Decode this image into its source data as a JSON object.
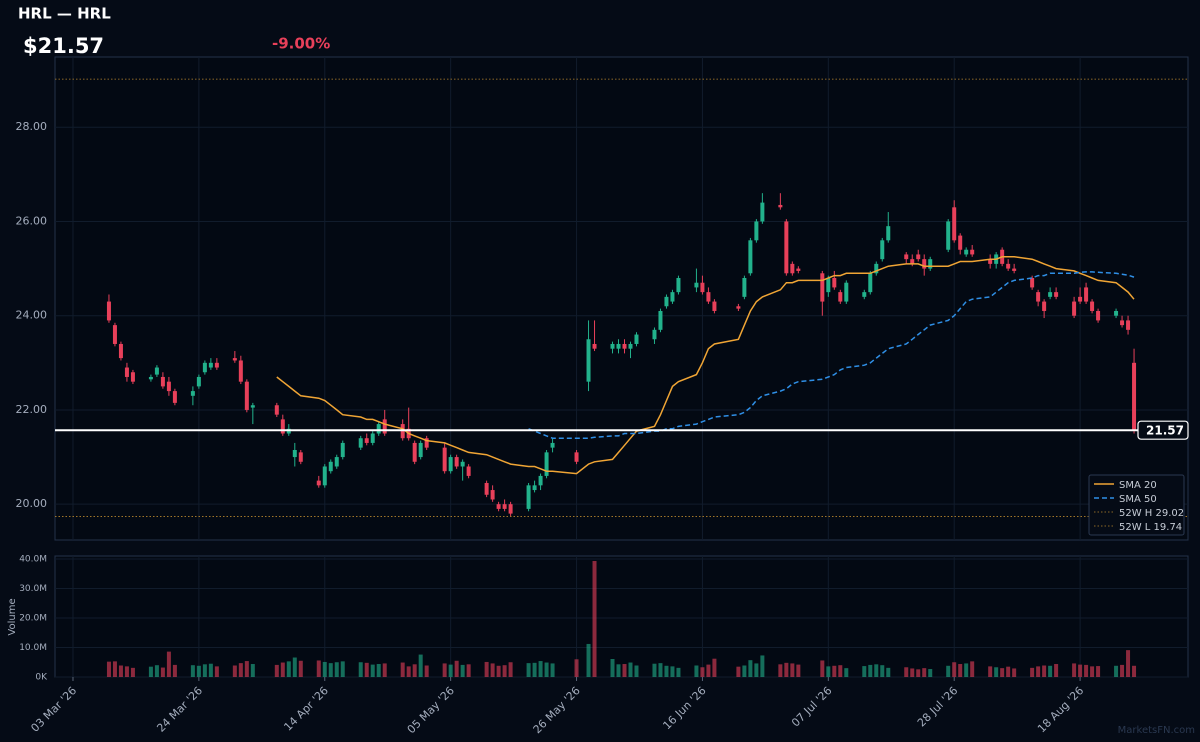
{
  "chart_data": {
    "type": "candlestick",
    "title": "HRL — HRL",
    "last": 21.57,
    "last_label": "$21.57",
    "change": -9,
    "change_label": "-9.00%",
    "watermark": "MarketsFN.com",
    "up_color": "#22b28c",
    "down_color": "#e8405a",
    "grid": true,
    "legend": "lower right",
    "xlim": [
      "2026-02-28",
      "2026-09-05"
    ],
    "xticks": [
      {
        "value": "2026-03-03",
        "label": "03 Mar '26"
      },
      {
        "value": "2026-03-24",
        "label": "24 Mar '26"
      },
      {
        "value": "2026-04-14",
        "label": "14 Apr '26"
      },
      {
        "value": "2026-05-05",
        "label": "05 May '26"
      },
      {
        "value": "2026-05-26",
        "label": "26 May '26"
      },
      {
        "value": "2026-06-16",
        "label": "16 Jun '26"
      },
      {
        "value": "2026-07-07",
        "label": "07 Jul '26"
      },
      {
        "value": "2026-07-28",
        "label": "28 Jul '26"
      },
      {
        "value": "2026-08-18",
        "label": "18 Aug '26"
      }
    ],
    "ylim": [
      19.24,
      29.49
    ],
    "yticks": [
      {
        "value": 20,
        "label": "20.00"
      },
      {
        "value": 22,
        "label": "22.00"
      },
      {
        "value": 24,
        "label": "24.00"
      },
      {
        "value": 26,
        "label": "26.00"
      },
      {
        "value": 28,
        "label": "28.00"
      }
    ],
    "x": [
      "2026-03-09",
      "2026-03-10",
      "2026-03-11",
      "2026-03-12",
      "2026-03-13",
      "2026-03-16",
      "2026-03-17",
      "2026-03-18",
      "2026-03-19",
      "2026-03-20",
      "2026-03-23",
      "2026-03-24",
      "2026-03-25",
      "2026-03-26",
      "2026-03-27",
      "2026-03-30",
      "2026-03-31",
      "2026-04-01",
      "2026-04-02",
      "2026-04-06",
      "2026-04-07",
      "2026-04-08",
      "2026-04-09",
      "2026-04-10",
      "2026-04-13",
      "2026-04-14",
      "2026-04-15",
      "2026-04-16",
      "2026-04-17",
      "2026-04-20",
      "2026-04-21",
      "2026-04-22",
      "2026-04-23",
      "2026-04-24",
      "2026-04-27",
      "2026-04-28",
      "2026-04-29",
      "2026-04-30",
      "2026-05-01",
      "2026-05-04",
      "2026-05-05",
      "2026-05-06",
      "2026-05-07",
      "2026-05-08",
      "2026-05-11",
      "2026-05-12",
      "2026-05-13",
      "2026-05-14",
      "2026-05-15",
      "2026-05-18",
      "2026-05-19",
      "2026-05-20",
      "2026-05-21",
      "2026-05-22",
      "2026-05-26",
      "2026-05-28",
      "2026-05-29",
      "2026-06-01",
      "2026-06-02",
      "2026-06-03",
      "2026-06-04",
      "2026-06-05",
      "2026-06-08",
      "2026-06-09",
      "2026-06-10",
      "2026-06-11",
      "2026-06-12",
      "2026-06-15",
      "2026-06-16",
      "2026-06-17",
      "2026-06-18",
      "2026-06-22",
      "2026-06-23",
      "2026-06-24",
      "2026-06-25",
      "2026-06-26",
      "2026-06-29",
      "2026-06-30",
      "2026-07-01",
      "2026-07-02",
      "2026-07-06",
      "2026-07-07",
      "2026-07-08",
      "2026-07-09",
      "2026-07-10",
      "2026-07-13",
      "2026-07-14",
      "2026-07-15",
      "2026-07-16",
      "2026-07-17",
      "2026-07-20",
      "2026-07-21",
      "2026-07-22",
      "2026-07-23",
      "2026-07-24",
      "2026-07-27",
      "2026-07-28",
      "2026-07-29",
      "2026-07-30",
      "2026-07-31",
      "2026-08-03",
      "2026-08-04",
      "2026-08-05",
      "2026-08-06",
      "2026-08-07",
      "2026-08-10",
      "2026-08-11",
      "2026-08-12",
      "2026-08-13",
      "2026-08-14",
      "2026-08-17",
      "2026-08-18",
      "2026-08-19",
      "2026-08-20",
      "2026-08-21",
      "2026-08-24",
      "2026-08-25",
      "2026-08-26",
      "2026-08-27"
    ],
    "open": [
      24.3,
      23.8,
      23.4,
      22.9,
      22.8,
      22.65,
      22.75,
      22.7,
      22.6,
      22.4,
      22.3,
      22.5,
      22.8,
      22.9,
      23.0,
      23.1,
      23.05,
      22.6,
      22.05,
      22.1,
      21.8,
      21.5,
      21.0,
      21.1,
      20.5,
      20.4,
      20.7,
      20.8,
      21.0,
      21.2,
      21.4,
      21.3,
      21.5,
      21.8,
      21.7,
      21.6,
      21.3,
      21.0,
      21.4,
      21.2,
      20.7,
      21.0,
      20.8,
      20.8,
      20.45,
      20.3,
      20.0,
      20.0,
      20.0,
      19.9,
      20.3,
      20.4,
      20.6,
      21.2,
      21.1,
      22.6,
      23.4,
      23.3,
      23.3,
      23.4,
      23.3,
      23.4,
      23.5,
      23.7,
      24.2,
      24.3,
      24.5,
      24.6,
      24.7,
      24.5,
      24.3,
      24.2,
      24.4,
      24.9,
      25.6,
      26.0,
      26.35,
      26.0,
      25.1,
      25.0,
      24.9,
      24.5,
      24.8,
      24.5,
      24.3,
      24.4,
      24.5,
      24.9,
      25.2,
      25.6,
      25.3,
      25.2,
      25.3,
      25.2,
      25.0,
      25.4,
      26.3,
      25.7,
      25.3,
      25.4,
      25.2,
      25.1,
      25.4,
      25.1,
      25.0,
      24.8,
      24.5,
      24.3,
      24.4,
      24.5,
      24.3,
      24.4,
      24.6,
      24.3,
      24.1,
      24.0,
      23.9,
      23.9,
      23.0
    ],
    "high": [
      24.45,
      23.85,
      23.45,
      23.0,
      22.85,
      22.75,
      22.95,
      22.8,
      22.7,
      22.45,
      22.5,
      22.75,
      23.05,
      23.1,
      23.1,
      23.25,
      23.15,
      22.65,
      22.15,
      22.15,
      21.9,
      21.7,
      21.3,
      21.15,
      20.6,
      20.85,
      20.95,
      21.05,
      21.35,
      21.45,
      21.5,
      21.55,
      21.75,
      22.0,
      21.8,
      22.05,
      21.35,
      21.35,
      21.45,
      21.3,
      21.05,
      21.05,
      20.95,
      20.85,
      20.5,
      20.4,
      20.05,
      20.1,
      20.05,
      20.45,
      20.5,
      20.65,
      21.15,
      21.4,
      21.15,
      23.9,
      23.9,
      23.45,
      23.5,
      23.5,
      23.45,
      23.65,
      23.75,
      24.15,
      24.45,
      24.55,
      24.85,
      25.0,
      24.85,
      24.6,
      24.35,
      24.25,
      24.85,
      25.65,
      26.05,
      26.6,
      26.6,
      26.05,
      25.15,
      25.05,
      24.95,
      24.85,
      24.95,
      24.55,
      24.75,
      24.55,
      24.95,
      25.15,
      25.65,
      26.2,
      25.35,
      25.3,
      25.4,
      25.3,
      25.25,
      26.05,
      26.45,
      25.75,
      25.45,
      25.5,
      25.3,
      25.35,
      25.45,
      25.2,
      25.1,
      24.85,
      24.55,
      24.35,
      24.6,
      24.6,
      24.4,
      24.6,
      24.7,
      24.35,
      24.15,
      24.15,
      24.0,
      24.0,
      23.3
    ],
    "low": [
      23.85,
      23.35,
      23.05,
      22.6,
      22.55,
      22.6,
      22.7,
      22.45,
      22.3,
      22.1,
      22.1,
      22.45,
      22.75,
      22.85,
      22.85,
      23.0,
      22.55,
      21.95,
      21.7,
      21.85,
      21.45,
      21.45,
      20.8,
      20.85,
      20.35,
      20.35,
      20.65,
      20.75,
      20.95,
      21.15,
      21.25,
      21.25,
      21.45,
      21.45,
      21.35,
      21.35,
      20.85,
      20.95,
      21.15,
      20.65,
      20.65,
      20.75,
      20.5,
      20.55,
      20.15,
      20.05,
      19.85,
      19.85,
      19.75,
      19.85,
      20.25,
      20.3,
      20.55,
      21.1,
      20.85,
      22.4,
      23.25,
      23.2,
      23.2,
      23.2,
      23.1,
      23.35,
      23.4,
      23.65,
      24.15,
      24.25,
      24.45,
      24.5,
      24.45,
      24.25,
      24.05,
      24.1,
      24.35,
      24.85,
      25.55,
      25.95,
      26.25,
      24.85,
      24.85,
      24.9,
      24.0,
      24.4,
      24.55,
      24.25,
      24.25,
      24.35,
      24.45,
      24.85,
      25.15,
      25.55,
      25.1,
      25.05,
      25.15,
      24.85,
      24.95,
      25.35,
      25.55,
      25.3,
      25.25,
      25.25,
      25.0,
      25.0,
      25.05,
      24.95,
      24.9,
      24.55,
      24.2,
      23.95,
      24.35,
      24.35,
      23.95,
      24.25,
      24.25,
      24.05,
      23.85,
      23.95,
      23.75,
      23.6,
      21.5
    ],
    "close": [
      23.9,
      23.4,
      23.1,
      22.7,
      22.6,
      22.7,
      22.9,
      22.5,
      22.4,
      22.15,
      22.4,
      22.7,
      23.0,
      23.0,
      22.9,
      23.05,
      22.6,
      22.0,
      22.1,
      21.9,
      21.5,
      21.6,
      21.15,
      20.9,
      20.4,
      20.8,
      20.9,
      21.0,
      21.3,
      21.4,
      21.3,
      21.5,
      21.7,
      21.5,
      21.4,
      21.4,
      20.9,
      21.3,
      21.2,
      20.7,
      21.0,
      20.8,
      20.9,
      20.6,
      20.2,
      20.1,
      19.9,
      19.9,
      19.8,
      20.4,
      20.4,
      20.6,
      21.1,
      21.3,
      20.9,
      23.5,
      23.3,
      23.4,
      23.4,
      23.3,
      23.4,
      23.6,
      23.7,
      24.1,
      24.4,
      24.5,
      24.8,
      24.7,
      24.5,
      24.3,
      24.1,
      24.15,
      24.8,
      25.6,
      26.0,
      26.4,
      26.3,
      24.9,
      24.9,
      24.95,
      24.3,
      24.8,
      24.6,
      24.3,
      24.7,
      24.5,
      24.9,
      25.1,
      25.6,
      25.9,
      25.2,
      25.1,
      25.2,
      25.0,
      25.2,
      26.0,
      25.6,
      25.4,
      25.4,
      25.3,
      25.1,
      25.3,
      25.1,
      25.0,
      24.95,
      24.6,
      24.3,
      24.1,
      24.5,
      24.4,
      24.0,
      24.3,
      24.3,
      24.1,
      23.9,
      24.1,
      23.8,
      23.7,
      21.57
    ],
    "overlays": [
      {
        "name": "SMA 20",
        "color": "#f0a535",
        "dashed": false,
        "values": [
          null,
          null,
          null,
          null,
          null,
          null,
          null,
          null,
          null,
          null,
          null,
          null,
          null,
          null,
          null,
          null,
          null,
          null,
          null,
          22.7,
          22.6,
          22.5,
          22.4,
          22.3,
          22.25,
          22.2,
          22.1,
          22.0,
          21.9,
          21.85,
          21.8,
          21.8,
          21.75,
          21.7,
          21.6,
          21.5,
          21.45,
          21.4,
          21.35,
          21.3,
          21.25,
          21.2,
          21.15,
          21.1,
          21.05,
          21.0,
          20.95,
          20.9,
          20.85,
          20.8,
          20.8,
          20.75,
          20.7,
          20.7,
          20.65,
          20.85,
          20.9,
          20.95,
          21.1,
          21.25,
          21.4,
          21.55,
          21.65,
          21.9,
          22.2,
          22.5,
          22.6,
          22.75,
          23.0,
          23.3,
          23.4,
          23.5,
          23.8,
          24.1,
          24.3,
          24.4,
          24.55,
          24.7,
          24.7,
          24.75,
          24.75,
          24.8,
          24.85,
          24.85,
          24.9,
          24.9,
          24.9,
          24.95,
          25.0,
          25.05,
          25.1,
          25.1,
          25.1,
          25.05,
          25.05,
          25.05,
          25.1,
          25.15,
          25.15,
          25.15,
          25.2,
          25.2,
          25.25,
          25.25,
          25.25,
          25.2,
          25.15,
          25.1,
          25.05,
          25.0,
          24.95,
          24.9,
          24.85,
          24.8,
          24.75,
          24.7,
          24.6,
          24.5,
          24.35
        ]
      },
      {
        "name": "SMA 50",
        "color": "#2f8fe6",
        "dashed": true,
        "values": [
          null,
          null,
          null,
          null,
          null,
          null,
          null,
          null,
          null,
          null,
          null,
          null,
          null,
          null,
          null,
          null,
          null,
          null,
          null,
          null,
          null,
          null,
          null,
          null,
          null,
          null,
          null,
          null,
          null,
          null,
          null,
          null,
          null,
          null,
          null,
          null,
          null,
          null,
          null,
          null,
          null,
          null,
          null,
          null,
          null,
          null,
          null,
          null,
          null,
          21.6,
          21.55,
          21.5,
          21.45,
          21.4,
          21.4,
          21.4,
          21.42,
          21.45,
          21.45,
          21.5,
          21.5,
          21.5,
          21.55,
          21.55,
          21.6,
          21.6,
          21.65,
          21.7,
          21.75,
          21.8,
          21.85,
          21.9,
          21.95,
          22.05,
          22.2,
          22.3,
          22.4,
          22.45,
          22.55,
          22.6,
          22.65,
          22.7,
          22.75,
          22.85,
          22.9,
          22.95,
          23.0,
          23.1,
          23.2,
          23.3,
          23.4,
          23.5,
          23.6,
          23.7,
          23.8,
          23.9,
          24.0,
          24.15,
          24.3,
          24.35,
          24.4,
          24.5,
          24.6,
          24.7,
          24.75,
          24.8,
          24.85,
          24.85,
          24.9,
          24.9,
          24.9,
          24.92,
          24.93,
          24.93,
          24.92,
          24.9,
          24.88,
          24.86,
          24.82
        ]
      }
    ],
    "levels": [
      {
        "name": "52W H 29.02",
        "value": 29.02,
        "color": "#b8862e"
      },
      {
        "name": "52W L 19.74",
        "value": 19.74,
        "color": "#b8862e"
      }
    ],
    "volume_panel": {
      "ylabel": "Volume",
      "ylim": [
        0,
        41
      ],
      "yticks": [
        {
          "value": 0,
          "label": "0K"
        },
        {
          "value": 10,
          "label": "10.0M"
        },
        {
          "value": 20,
          "label": "20.0M"
        },
        {
          "value": 30,
          "label": "30.0M"
        },
        {
          "value": 40,
          "label": "40.0M"
        }
      ],
      "values": [
        5.2,
        5.3,
        3.9,
        3.6,
        3.1,
        3.5,
        4.0,
        3.2,
        8.6,
        4.1,
        4.0,
        3.8,
        4.3,
        4.5,
        3.6,
        3.9,
        4.7,
        5.4,
        4.4,
        4.1,
        4.9,
        5.3,
        6.6,
        5.5,
        5.6,
        5.1,
        4.7,
        5.0,
        5.3,
        5.0,
        4.8,
        4.2,
        4.4,
        4.6,
        4.9,
        3.6,
        4.3,
        7.6,
        3.9,
        4.6,
        4.2,
        5.5,
        4.1,
        4.3,
        5.1,
        4.6,
        3.8,
        4.0,
        5.0,
        4.7,
        4.8,
        5.4,
        4.9,
        4.6,
        6.0,
        11.2,
        39.3,
        6.1,
        4.3,
        4.4,
        4.9,
        3.9,
        4.5,
        4.7,
        3.8,
        3.6,
        3.1,
        3.9,
        3.3,
        4.2,
        6.2,
        3.5,
        3.9,
        5.7,
        4.6,
        7.3,
        4.3,
        4.8,
        4.6,
        4.2,
        5.6,
        3.6,
        3.8,
        4.0,
        3.0,
        3.7,
        4.1,
        4.3,
        4.0,
        3.1,
        3.3,
        2.9,
        2.6,
        3.0,
        2.7,
        3.8,
        5.0,
        4.4,
        4.6,
        5.3,
        3.6,
        3.3,
        3.0,
        3.5,
        2.9,
        3.1,
        3.6,
        3.9,
        3.8,
        4.4,
        4.6,
        4.2,
        4.1,
        3.6,
        3.7,
        3.8,
        4.1,
        9.1,
        3.8
      ]
    }
  }
}
